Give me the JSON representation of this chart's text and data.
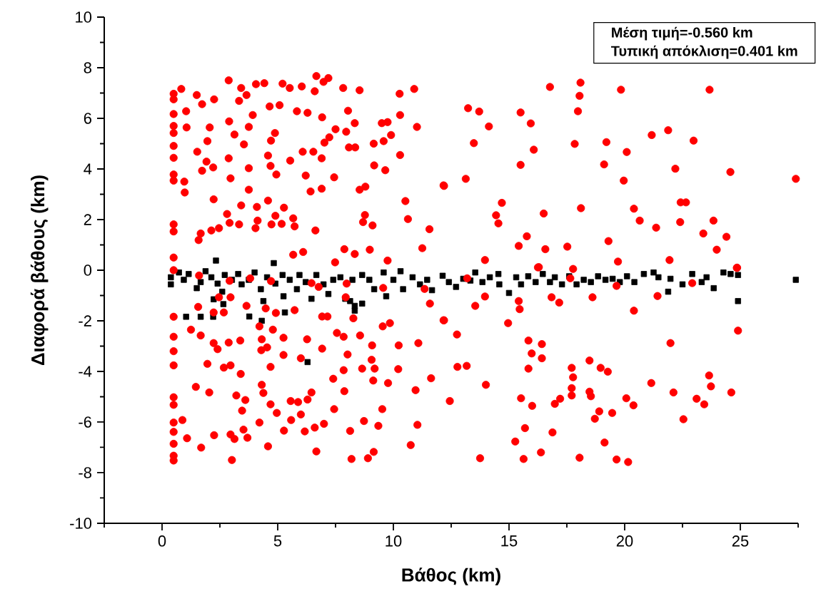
{
  "chart_data": {
    "type": "scatter",
    "xlabel": "Βάθος (km)",
    "ylabel": "Διαφορά βάθους (km)",
    "annotations": [
      "Μέση τιμή=-0.560 km",
      "Τυπική απόκλιση=0.401 km"
    ],
    "xlim": [
      -2.5,
      27.5
    ],
    "ylim": [
      -10,
      10
    ],
    "xticks": [
      {
        "value": -2.5,
        "label": null
      },
      0,
      {
        "value": 2.5,
        "label": null
      },
      5,
      {
        "value": 7.5,
        "label": null
      },
      10,
      {
        "value": 12.5,
        "label": null
      },
      15,
      {
        "value": 17.5,
        "label": null
      },
      20,
      {
        "value": 22.5,
        "label": null
      },
      25,
      {
        "value": 27.5,
        "label": null
      }
    ],
    "yticks": [
      -10,
      {
        "value": -9,
        "label": null
      },
      -8,
      {
        "value": -7,
        "label": null
      },
      -6,
      {
        "value": -5,
        "label": null
      },
      -4,
      {
        "value": -3,
        "label": null
      },
      -2,
      {
        "value": -1,
        "label": null
      },
      0,
      {
        "value": 1,
        "label": null
      },
      2,
      {
        "value": 3,
        "label": null
      },
      4,
      {
        "value": 5,
        "label": null
      },
      6,
      {
        "value": 7,
        "label": null
      },
      8,
      {
        "value": 9,
        "label": null
      },
      10
    ],
    "marker": "circle",
    "series": [
      {
        "color": "#000000",
        "marker": "square",
        "x": [
          0.38,
          0.38,
          0.73,
          0.94,
          1.15,
          1.5,
          1.67,
          1.88,
          2.13,
          2.33,
          2.4,
          2.6,
          2.71,
          3.02,
          3.29,
          3.44,
          3.75,
          4.0,
          4.27,
          4.54,
          4.83,
          4.9,
          5.21,
          5.25,
          5.52,
          5.83,
          5.94,
          6.21,
          6.46,
          6.67,
          6.98,
          7.19,
          7.4,
          7.71,
          7.92,
          8.23,
          8.33,
          8.65,
          8.96,
          9.17,
          9.58,
          9.69,
          10.0,
          10.31,
          10.42,
          10.83,
          11.15,
          11.46,
          11.67,
          12.13,
          12.4,
          12.71,
          13.02,
          13.33,
          13.54,
          13.85,
          14.17,
          14.54,
          14.58,
          15.0,
          15.31,
          15.52,
          15.83,
          16.15,
          16.46,
          16.77,
          16.98,
          17.29,
          17.6,
          17.92,
          18.23,
          18.54,
          18.85,
          19.17,
          19.48,
          19.79,
          20.1,
          20.42,
          20.83,
          21.25,
          21.46,
          21.88,
          21.98,
          22.5,
          22.92,
          23.33,
          23.54,
          23.85,
          24.27,
          24.58,
          24.9,
          24.9,
          27.4,
          1.04,
          1.67,
          2.21,
          2.23,
          2.65,
          3.77,
          4.31,
          5.31,
          6.29,
          4.38,
          8.33,
          8.65,
          8.13
        ],
        "values": [
          -0.28,
          -0.56,
          -0.09,
          -0.38,
          -0.15,
          -0.71,
          -0.47,
          -0.04,
          -0.28,
          0.38,
          -0.53,
          -0.85,
          -0.19,
          -0.38,
          -0.15,
          -0.56,
          -0.38,
          -0.09,
          -0.75,
          -0.28,
          0.28,
          -0.53,
          -0.19,
          -1.03,
          -0.38,
          -0.75,
          -0.19,
          -0.47,
          -1.13,
          -0.19,
          -0.56,
          -0.94,
          -0.38,
          -0.28,
          -1.13,
          -0.38,
          -1.41,
          -0.19,
          -0.38,
          -0.75,
          -0.09,
          -1.03,
          -0.38,
          -0.04,
          -0.75,
          -0.28,
          -0.56,
          -0.38,
          -0.79,
          -0.22,
          -0.47,
          -0.66,
          -0.34,
          -0.41,
          -0.09,
          -0.47,
          -0.28,
          -0.15,
          -0.56,
          -0.9,
          -0.28,
          -0.56,
          -0.24,
          -0.47,
          -0.15,
          -0.47,
          -0.28,
          -0.56,
          -0.24,
          -0.56,
          -0.38,
          -0.47,
          -0.24,
          -0.38,
          -0.34,
          -0.47,
          -0.24,
          -0.47,
          -0.15,
          -0.09,
          -0.28,
          -0.85,
          -0.34,
          -0.56,
          -0.15,
          -0.47,
          -0.28,
          -0.71,
          -0.09,
          -0.15,
          -0.19,
          -1.22,
          -0.38,
          -1.84,
          -1.84,
          -1.84,
          -1.15,
          -1.34,
          -1.83,
          -2.0,
          -1.67,
          -3.63,
          -1.22,
          -1.6,
          -1.32,
          -1.22
        ]
      },
      {
        "color": "#ff0000",
        "x": [
          0.5,
          0.5,
          0.5,
          0.5,
          0.5,
          0.5,
          0.5,
          0.5,
          0.5,
          0.5,
          0.5,
          0.5,
          0.5,
          0.5,
          0.5,
          0.5,
          0.5,
          0.5,
          0.5,
          0.5,
          0.5,
          0.5,
          0.5,
          0.5,
          0.83,
          1.5,
          1.04,
          1.73,
          2.25,
          2.88,
          3.42,
          3.33,
          3.65,
          4.06,
          4.42,
          5.21,
          5.52,
          6.04,
          6.6,
          6.67,
          6.98,
          7.19,
          7.83,
          8.54,
          10.27,
          10.9,
          1.06,
          2.06,
          2.9,
          3.75,
          3.92,
          4.65,
          5.08,
          5.83,
          6.29,
          6.92,
          7.5,
          8.04,
          8.33,
          7.96,
          9.5,
          9.75,
          10.29,
          11.02,
          1.96,
          3.13,
          3.54,
          4.88,
          4.71,
          7.02,
          7.23,
          8.08,
          8.35,
          9.15,
          9.58,
          9.9,
          1.52,
          1.92,
          1.73,
          2.21,
          2.88,
          3.75,
          4.58,
          4.69,
          4.94,
          5.54,
          6.08,
          6.54,
          6.9,
          6.21,
          7.44,
          9.17,
          9.65,
          10.29,
          0.96,
          0.98,
          2.23,
          2.96,
          3.75,
          3.42,
          4.1,
          4.58,
          5.27,
          6.42,
          6.9,
          8.54,
          8.79,
          10.52,
          12.17,
          2.81,
          2.92,
          3.33,
          4.13,
          4.04,
          4.9,
          4.73,
          5.17,
          5.67,
          5.73,
          6.63,
          8.77,
          8.69,
          9.1,
          10.63,
          11.56,
          1.67,
          1.58,
          2.13,
          2.46,
          11.25,
          6.1,
          7.88,
          8.33,
          8.98,
          9.75,
          5.67,
          7.48,
          13.23,
          13.71,
          14.13,
          15.5,
          15.94,
          16.77,
          18.09,
          18.05,
          17.98,
          19.84,
          23.67,
          13.48,
          16.07,
          17.84,
          19.21,
          20.09,
          21.17,
          21.88,
          22.98,
          15.5,
          19.11,
          19.96,
          22.19,
          24.57,
          27.4,
          12.19,
          13.13,
          14.69,
          14.44,
          14.54,
          16.5,
          18.11,
          20.4,
          20.65,
          21.36,
          22.42,
          22.65,
          22.4,
          23.84,
          23.4,
          24.4,
          23.98,
          15.77,
          15.42,
          16.57,
          17.52,
          19.3,
          13.96,
          16.29,
          19.71,
          21.94,
          24.86,
          1.25,
          1.67,
          2.23,
          2.4,
          2.88,
          3.38,
          1.96,
          2.67,
          2.96,
          3.4,
          1.46,
          2.04,
          3.21,
          3.6,
          3.46,
          3.52,
          2.96,
          3.13,
          3.69,
          2.25,
          1.08,
          1.69,
          3.02,
          0.88,
          4.21,
          4.79,
          4.31,
          4.54,
          4.29,
          5.25,
          5.25,
          4.69,
          4.31,
          4.38,
          4.69,
          4.96,
          4.21,
          4.58,
          5.27,
          5.58,
          5.56,
          5.88,
          6.0,
          6.0,
          6.27,
          6.92,
          6.46,
          6.29,
          6.17,
          6.6,
          6.67,
          7.0,
          7.44,
          7.4,
          7.88,
          7.85,
          8.02,
          7.56,
          7.85,
          8.56,
          9.08,
          9.06,
          9.19,
          8.65,
          9.13,
          9.77,
          10.21,
          10.23,
          11.08,
          9.54,
          9.85,
          11.63,
          10.96,
          9.52,
          8.73,
          9.35,
          8.13,
          11.04,
          10.75,
          9.15,
          8.9,
          8.19,
          6.92,
          7.15,
          8.27,
          12.17,
          1.56,
          2.23,
          2.67,
          4.48,
          4.92,
          5.73,
          11.58,
          2.46,
          2.96,
          3.65,
          7.94,
          6.46,
          6.77,
          4.71,
          7.98,
          11.35,
          1.6,
          2.92,
          3.81,
          9.56,
          12.19,
          12.75,
          12.77,
          13.17,
          14.0,
          12.44,
          14.96,
          15.84,
          15.98,
          16.42,
          16.42,
          15.84,
          15.52,
          16.0,
          15.69,
          15.27,
          15.63,
          13.75,
          16.38,
          16.88,
          16.98,
          17.21,
          17.71,
          17.77,
          17.71,
          17.71,
          18.48,
          18.96,
          19.27,
          18.48,
          18.54,
          18.9,
          18.71,
          19.46,
          19.13,
          18.05,
          19.65,
          20.15,
          20.07,
          20.38,
          21.15,
          21.98,
          22.11,
          22.54,
          23.11,
          23.44,
          23.65,
          23.73,
          24.61,
          24.9,
          13.96,
          13.54,
          15.42,
          15.46,
          16.84,
          17.17,
          18.61,
          20.4,
          21.42,
          19.65,
          22.92,
          17.65,
          13.19,
          17.77,
          16.25,
          24.85
        ],
        "values": [
          6.97,
          6.75,
          6.17,
          5.7,
          5.42,
          4.91,
          4.44,
          3.78,
          3.54,
          1.81,
          1.53,
          0.5,
          0.0,
          -1.84,
          -2.63,
          -3.2,
          -3.76,
          -5.02,
          -5.32,
          -6.02,
          -6.39,
          -6.86,
          -7.33,
          -7.52,
          7.16,
          6.92,
          6.28,
          6.56,
          6.75,
          7.5,
          7.2,
          6.69,
          6.92,
          7.35,
          7.39,
          7.37,
          7.2,
          7.26,
          7.07,
          7.67,
          7.44,
          7.59,
          7.2,
          7.11,
          6.97,
          7.16,
          5.64,
          5.64,
          5.88,
          5.66,
          6.13,
          6.47,
          6.52,
          6.28,
          6.22,
          6.04,
          5.57,
          6.3,
          5.81,
          5.47,
          5.81,
          5.85,
          6.13,
          5.66,
          5.1,
          5.36,
          4.97,
          5.42,
          5.12,
          5.04,
          5.25,
          4.85,
          4.85,
          5.0,
          5.1,
          5.34,
          4.68,
          4.29,
          3.93,
          4.06,
          4.42,
          4.03,
          4.53,
          4.12,
          3.78,
          4.33,
          4.68,
          4.68,
          4.42,
          3.74,
          3.67,
          4.14,
          3.95,
          4.55,
          3.5,
          3.07,
          2.8,
          3.63,
          3.18,
          2.56,
          2.5,
          2.75,
          2.47,
          3.11,
          3.22,
          3.18,
          3.3,
          2.73,
          3.35,
          2.22,
          1.87,
          1.81,
          1.96,
          1.66,
          2.15,
          1.81,
          1.83,
          2.05,
          1.73,
          1.57,
          2.18,
          1.9,
          1.77,
          2.02,
          1.62,
          1.45,
          1.19,
          1.57,
          1.66,
          0.87,
          0.72,
          0.83,
          0.64,
          0.81,
          0.38,
          0.61,
          0.31,
          6.4,
          6.27,
          5.68,
          6.23,
          5.8,
          7.24,
          7.41,
          6.89,
          6.28,
          7.13,
          7.13,
          5.02,
          4.76,
          4.99,
          5.06,
          4.67,
          5.34,
          5.53,
          5.12,
          4.16,
          4.18,
          3.54,
          4.01,
          3.88,
          3.61,
          3.33,
          3.61,
          2.66,
          2.17,
          1.85,
          2.24,
          2.45,
          2.43,
          1.96,
          1.68,
          2.68,
          2.68,
          1.9,
          1.96,
          1.45,
          1.32,
          0.81,
          1.34,
          0.96,
          0.83,
          0.93,
          1.15,
          0.4,
          0.12,
          0.34,
          0.4,
          0.1,
          -2.35,
          -2.58,
          -2.88,
          -3.12,
          -2.86,
          -2.78,
          -3.7,
          -3.85,
          -3.76,
          -4.1,
          -4.61,
          -4.83,
          -4.95,
          -5.13,
          -5.55,
          -6.3,
          -6.49,
          -6.67,
          -6.62,
          -6.52,
          -6.64,
          -7.01,
          -7.5,
          -5.92,
          -2.22,
          -2.35,
          -2.73,
          -3.05,
          -3.16,
          -2.67,
          -3.35,
          -3.82,
          -4.53,
          -4.85,
          -5.3,
          -5.64,
          -6.02,
          -6.96,
          -6.34,
          -5.92,
          -5.17,
          -5.21,
          -5.7,
          -3.48,
          -2.73,
          -3.1,
          -4.83,
          -5.11,
          -6.37,
          -6.22,
          -7.16,
          -6.07,
          -5.49,
          -4.29,
          -4.78,
          -3.95,
          -3.33,
          -2.48,
          -2.63,
          -2.58,
          -2.97,
          -3.54,
          -3.89,
          -3.89,
          -4.36,
          -4.46,
          -3.91,
          -2.97,
          -2.88,
          -2.22,
          -2.09,
          -4.27,
          -4.74,
          -5.49,
          -5.96,
          -6.15,
          -6.35,
          -6.11,
          -6.91,
          -7.18,
          -7.43,
          -7.46,
          -1.83,
          -1.83,
          -1.9,
          -1.98,
          -1.45,
          -1.67,
          -1.67,
          -1.51,
          -1.69,
          -1.58,
          -1.32,
          -1.07,
          -1.07,
          -1.41,
          -1.07,
          -0.51,
          -0.66,
          -0.43,
          -0.53,
          -0.74,
          -0.21,
          -0.42,
          -0.32,
          -0.7,
          -1.98,
          -2.54,
          -3.82,
          -3.78,
          -4.53,
          -5.17,
          -2.09,
          -2.78,
          -3.29,
          -2.92,
          -3.48,
          -3.89,
          -5.06,
          -5.36,
          -6.24,
          -6.77,
          -7.46,
          -7.43,
          -7.2,
          -6.41,
          -5.28,
          -5.08,
          -3.86,
          -4.23,
          -4.66,
          -4.95,
          -3.57,
          -3.86,
          -4.01,
          -4.8,
          -4.98,
          -5.58,
          -5.87,
          -5.64,
          -6.81,
          -7.41,
          -7.48,
          -7.58,
          -5.06,
          -5.34,
          -4.46,
          -2.88,
          -4.83,
          -5.89,
          -5.08,
          -5.3,
          -4.16,
          -4.59,
          -4.83,
          -2.39,
          -1.04,
          -1.41,
          -1.22,
          -1.54,
          -1.07,
          -1.28,
          -1.07,
          -1.6,
          -1.02,
          -0.62,
          -0.51,
          -0.32,
          -0.32,
          0.05,
          0.11,
          0.09
        ]
      }
    ]
  }
}
